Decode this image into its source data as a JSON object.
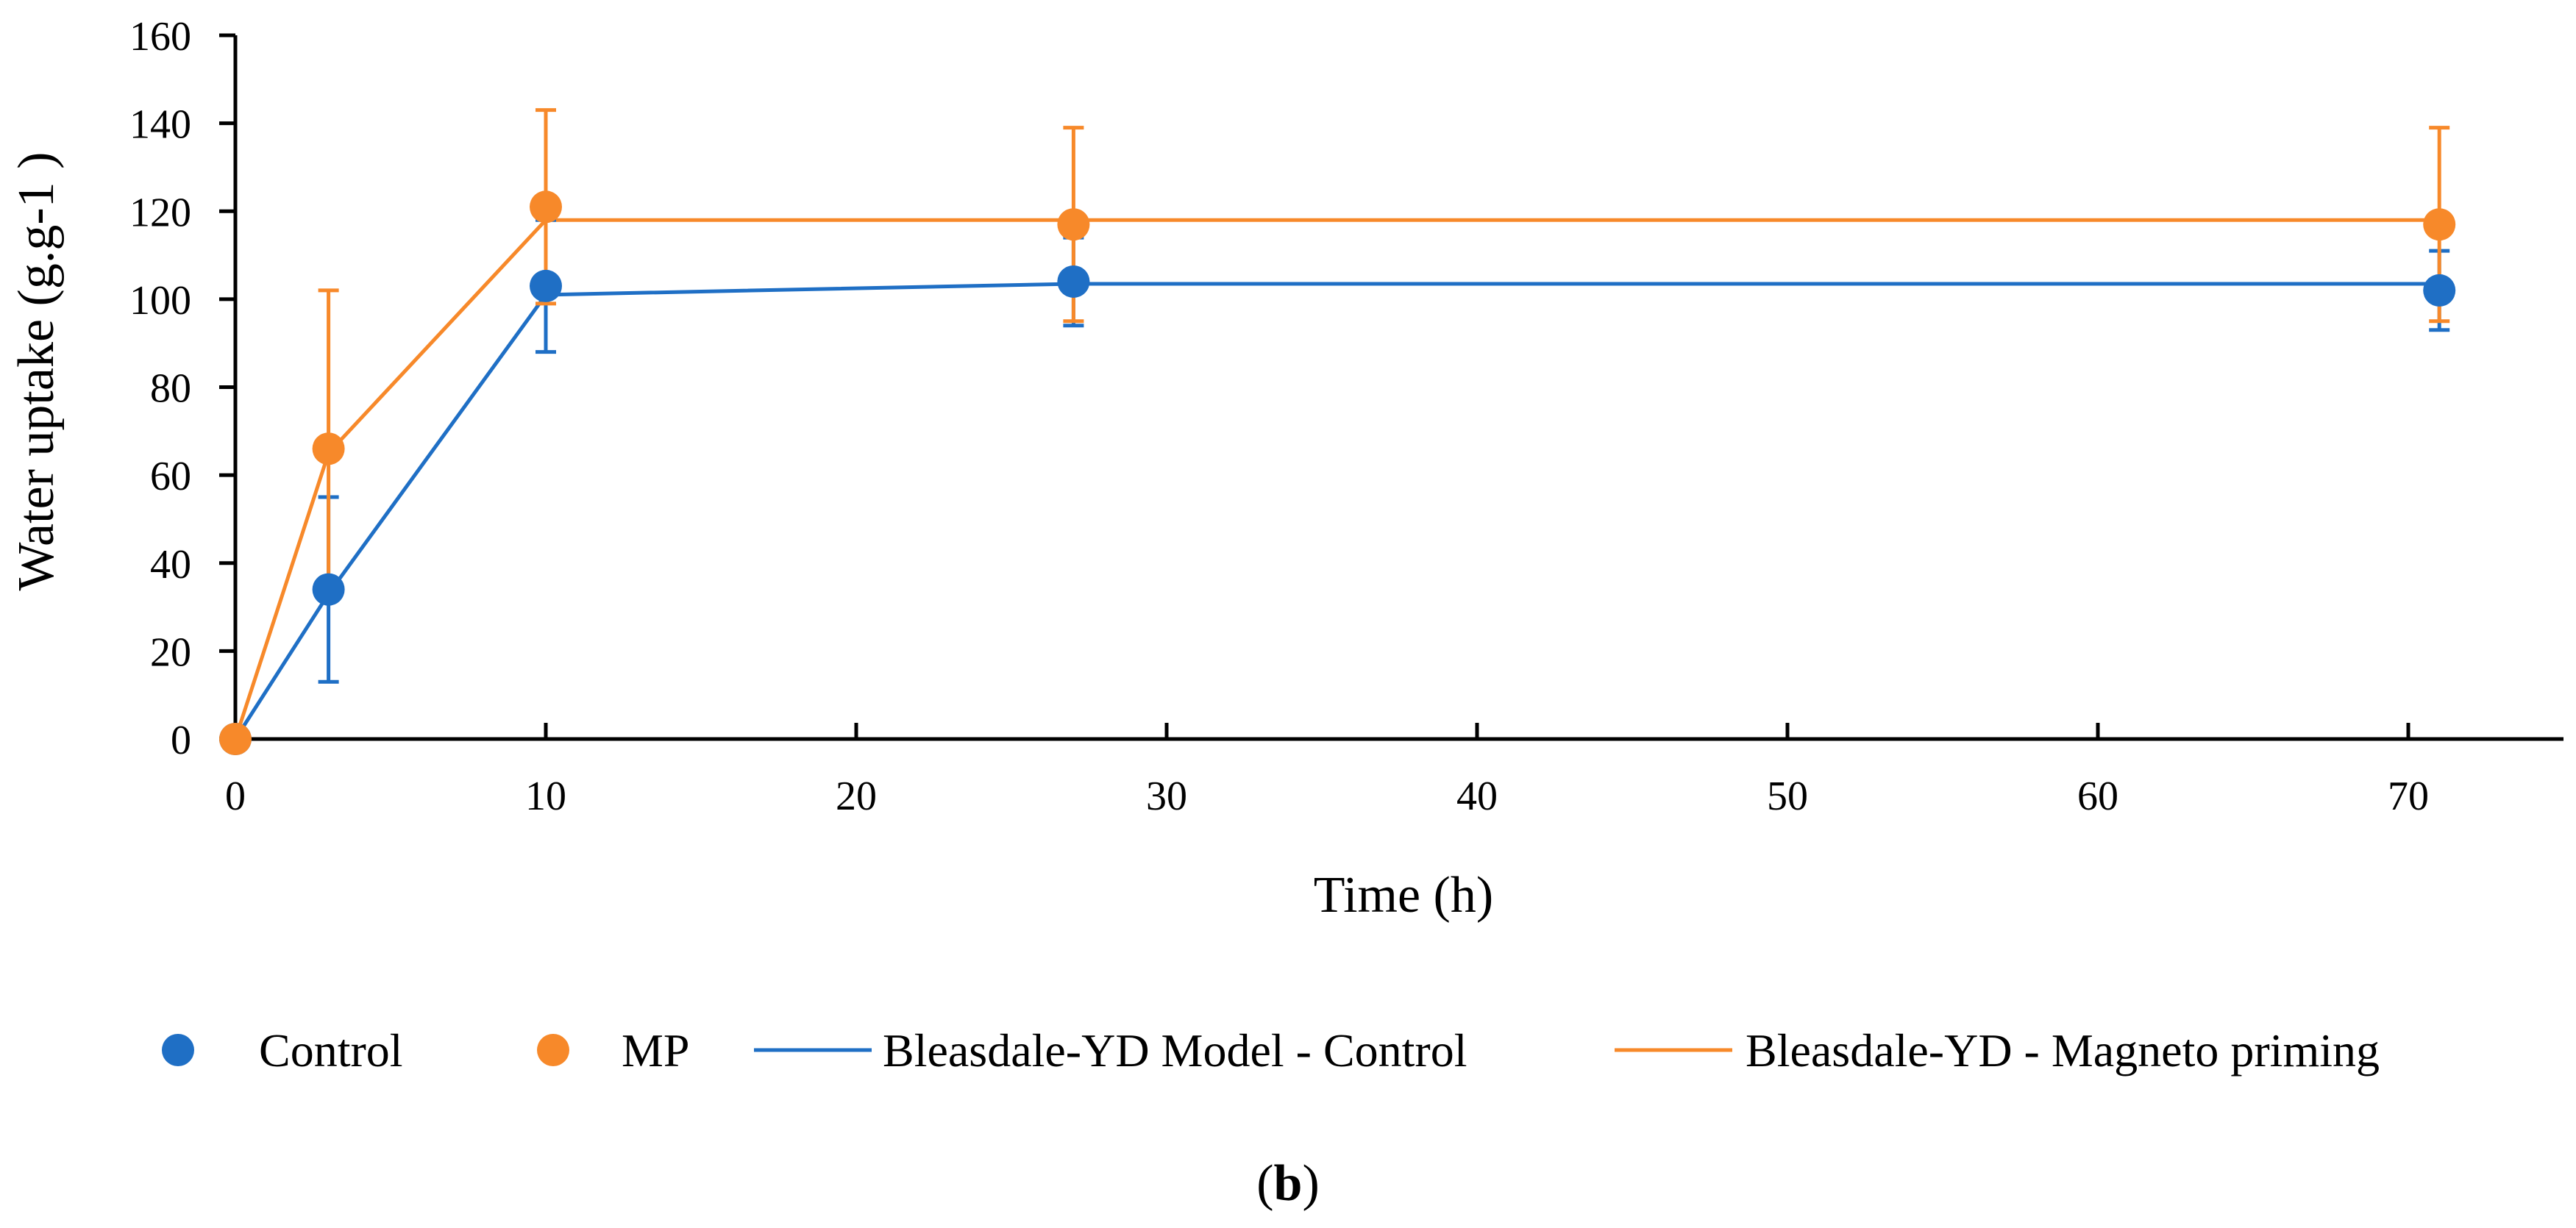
{
  "chart_data": {
    "type": "scatter",
    "title": "",
    "xlabel": "Time (h)",
    "ylabel": "Water uptake (g.g-1 )",
    "xlim": [
      0,
      75
    ],
    "ylim": [
      0,
      160
    ],
    "xticks": [
      0,
      10,
      20,
      30,
      40,
      50,
      60,
      70
    ],
    "yticks": [
      0,
      20,
      40,
      60,
      80,
      100,
      120,
      140,
      160
    ],
    "grid": false,
    "legend_position": "bottom",
    "series": [
      {
        "name": "Control",
        "kind": "points",
        "color": "#1f6fc5",
        "x": [
          0,
          3,
          10,
          27,
          71
        ],
        "y": [
          0,
          34,
          103,
          104,
          102
        ],
        "err_low": [
          0,
          21,
          15,
          10,
          9
        ],
        "err_high": [
          0,
          21,
          15,
          10,
          9
        ]
      },
      {
        "name": "MP",
        "kind": "points",
        "color": "#f7892a",
        "x": [
          0,
          3,
          10,
          27,
          71
        ],
        "y": [
          0,
          66,
          121,
          117,
          117
        ],
        "err_low": [
          0,
          30,
          22,
          22,
          22
        ],
        "err_high": [
          0,
          36,
          22,
          22,
          22
        ]
      },
      {
        "name": "Bleasdale-YD Model - Control",
        "kind": "line",
        "color": "#1f6fc5",
        "x": [
          0,
          3,
          10,
          27,
          71
        ],
        "y": [
          0,
          33,
          101,
          103.5,
          103.5
        ]
      },
      {
        "name": "Bleasdale-YD - Magneto priming",
        "kind": "line",
        "color": "#f7892a",
        "x": [
          0,
          3,
          10,
          27,
          71
        ],
        "y": [
          0,
          65,
          118,
          118,
          118
        ]
      }
    ]
  },
  "caption": {
    "open": "(",
    "letter": "b",
    "close": ")"
  }
}
